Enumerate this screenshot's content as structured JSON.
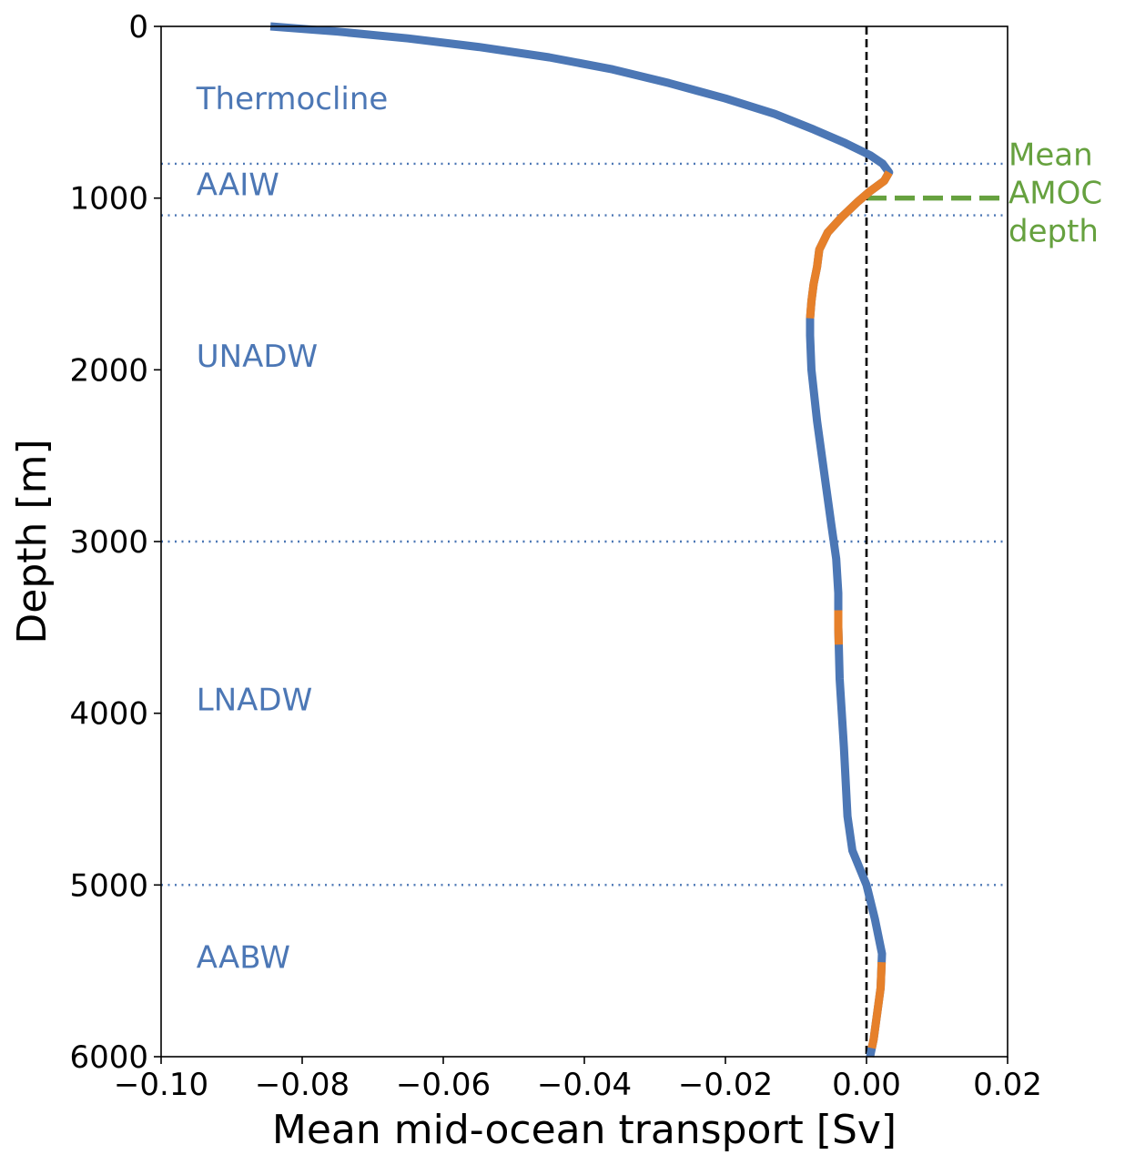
{
  "chart_data": {
    "type": "line",
    "xlabel": "Mean mid-ocean transport [Sv]",
    "ylabel": "Depth [m]",
    "xlim": [
      -0.1,
      0.02
    ],
    "ylim": [
      6000,
      0
    ],
    "y_inverted": true,
    "grid": false,
    "x_ticks": [
      -0.1,
      -0.08,
      -0.06,
      -0.04,
      -0.02,
      0.0,
      0.02
    ],
    "x_tick_labels": [
      "−0.10",
      "−0.08",
      "−0.06",
      "−0.04",
      "−0.02",
      "0.00",
      "0.02"
    ],
    "y_ticks": [
      0,
      1000,
      2000,
      3000,
      4000,
      5000,
      6000
    ],
    "y_tick_labels": [
      "0",
      "1000",
      "2000",
      "3000",
      "4000",
      "5000",
      "6000"
    ],
    "colors": {
      "primary": "#4c77b5",
      "highlight": "#e6802a",
      "amoc": "#66a13f",
      "zero_line": "#000000",
      "layer_line": "#4c77b5"
    },
    "series": [
      {
        "points": [
          [
            -0.0845,
            0
          ],
          [
            -0.075,
            30
          ],
          [
            -0.065,
            70
          ],
          [
            -0.055,
            120
          ],
          [
            -0.045,
            180
          ],
          [
            -0.036,
            250
          ],
          [
            -0.028,
            330
          ],
          [
            -0.02,
            420
          ],
          [
            -0.013,
            510
          ],
          [
            -0.0075,
            600
          ],
          [
            -0.003,
            680
          ],
          [
            0.0005,
            750
          ],
          [
            0.0023,
            800
          ],
          [
            0.0032,
            850
          ],
          [
            0.0025,
            900
          ],
          [
            0.0005,
            960
          ],
          [
            -0.0012,
            1020
          ],
          [
            -0.0035,
            1110
          ],
          [
            -0.0055,
            1200
          ],
          [
            -0.0067,
            1300
          ],
          [
            -0.007,
            1400
          ],
          [
            -0.0075,
            1500
          ],
          [
            -0.0078,
            1600
          ],
          [
            -0.008,
            1700
          ],
          [
            -0.008,
            1800
          ],
          [
            -0.0078,
            2000
          ],
          [
            -0.007,
            2300
          ],
          [
            -0.006,
            2600
          ],
          [
            -0.005,
            2900
          ],
          [
            -0.0043,
            3100
          ],
          [
            -0.004,
            3300
          ],
          [
            -0.004,
            3500
          ],
          [
            -0.0038,
            3800
          ],
          [
            -0.0032,
            4200
          ],
          [
            -0.0027,
            4600
          ],
          [
            -0.002,
            4800
          ],
          [
            0.0,
            5000
          ],
          [
            0.0012,
            5200
          ],
          [
            0.0022,
            5400
          ],
          [
            0.002,
            5600
          ],
          [
            0.001,
            5900
          ],
          [
            0.0005,
            6000
          ]
        ]
      }
    ],
    "highlighted_depth_ranges": [
      [
        850,
        1700
      ],
      [
        3400,
        3600
      ],
      [
        5450,
        5950
      ]
    ],
    "reference_lines": {
      "zero_line_x": 0.0,
      "layer_boundaries": [
        800,
        1100,
        3000,
        5000
      ],
      "amoc_depth": 1000,
      "amoc_x_range": [
        0.0,
        0.02
      ]
    },
    "layer_labels": [
      {
        "text": "Thermocline",
        "depth": 420
      },
      {
        "text": "AAIW",
        "depth": 920
      },
      {
        "text": "UNADW",
        "depth": 1920
      },
      {
        "text": "LNADW",
        "depth": 3920
      },
      {
        "text": "AABW",
        "depth": 5420
      }
    ],
    "layer_label_x": -0.095,
    "amoc_annotation": [
      "Mean",
      "AMOC",
      "depth"
    ]
  }
}
